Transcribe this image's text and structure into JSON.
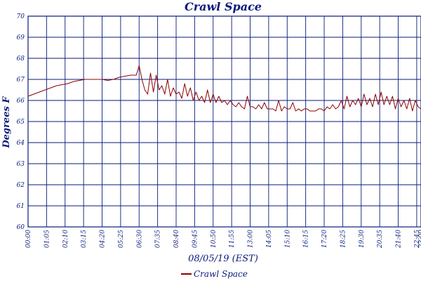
{
  "chart_data": {
    "type": "line",
    "title": "Crawl Space",
    "xlabel": "08/05/19 (EST)",
    "ylabel": "Degrees F",
    "ylim": [
      60,
      70
    ],
    "yticks": [
      "60",
      "61",
      "62",
      "63",
      "64",
      "65",
      "66",
      "67",
      "68",
      "69",
      "70"
    ],
    "xlim_minutes": [
      0,
      1380
    ],
    "xticks": [
      "00:00",
      "01:05",
      "02:10",
      "03:15",
      "04:20",
      "05:25",
      "06:30",
      "07:35",
      "08:40",
      "09:45",
      "10:50",
      "11:55",
      "13:00",
      "14:05",
      "15:10",
      "16:15",
      "17:20",
      "18:25",
      "19:30",
      "20:35",
      "21:40",
      "22:45",
      "23:00"
    ],
    "grid": true,
    "legend": "bottom-center",
    "series": [
      {
        "name": "Crawl Space",
        "color": "#8b0000",
        "x_minutes": [
          0,
          20,
          40,
          60,
          80,
          100,
          120,
          140,
          160,
          180,
          200,
          220,
          240,
          260,
          280,
          300,
          320,
          340,
          360,
          380,
          390,
          400,
          410,
          420,
          430,
          440,
          450,
          460,
          470,
          480,
          490,
          500,
          510,
          520,
          530,
          540,
          550,
          560,
          570,
          580,
          590,
          600,
          610,
          620,
          630,
          640,
          650,
          660,
          670,
          680,
          690,
          700,
          710,
          720,
          730,
          740,
          750,
          760,
          770,
          780,
          790,
          800,
          810,
          820,
          830,
          840,
          850,
          860,
          870,
          880,
          890,
          900,
          910,
          920,
          930,
          940,
          950,
          960,
          970,
          980,
          990,
          1000,
          1010,
          1020,
          1030,
          1040,
          1050,
          1060,
          1070,
          1080,
          1090,
          1100,
          1110,
          1120,
          1130,
          1140,
          1150,
          1160,
          1170,
          1180,
          1190,
          1200,
          1210,
          1220,
          1230,
          1240,
          1250,
          1260,
          1270,
          1280,
          1290,
          1300,
          1310,
          1320,
          1330,
          1340,
          1350,
          1360,
          1370,
          1380
        ],
        "values": [
          66.2,
          66.3,
          66.4,
          66.5,
          66.6,
          66.7,
          66.75,
          66.8,
          66.9,
          66.95,
          67.0,
          67.0,
          67.0,
          67.0,
          66.95,
          67.0,
          67.1,
          67.15,
          67.2,
          67.2,
          67.65,
          67.0,
          66.5,
          66.3,
          67.3,
          66.4,
          67.2,
          66.5,
          66.7,
          66.3,
          67.0,
          66.2,
          66.6,
          66.3,
          66.4,
          66.1,
          66.8,
          66.2,
          66.6,
          66.0,
          66.4,
          66.0,
          66.2,
          65.9,
          66.5,
          65.9,
          66.3,
          65.9,
          66.2,
          65.9,
          66.0,
          65.8,
          66.0,
          65.8,
          65.7,
          65.9,
          65.7,
          65.6,
          66.2,
          65.7,
          65.7,
          65.6,
          65.8,
          65.6,
          65.9,
          65.6,
          65.6,
          65.6,
          65.5,
          66.0,
          65.5,
          65.7,
          65.6,
          65.6,
          65.9,
          65.5,
          65.6,
          65.5,
          65.6,
          65.6,
          65.5,
          65.5,
          65.5,
          65.6,
          65.6,
          65.5,
          65.7,
          65.6,
          65.8,
          65.6,
          65.7,
          66.0,
          65.6,
          66.2,
          65.7,
          66.0,
          65.8,
          66.1,
          65.7,
          66.3,
          65.8,
          66.1,
          65.7,
          66.3,
          65.8,
          66.4,
          65.8,
          66.2,
          65.8,
          66.2,
          65.6,
          66.1,
          65.7,
          66.0,
          65.6,
          66.1,
          65.5,
          66.0,
          65.7,
          65.6
        ],
        "approximate": true
      }
    ]
  }
}
